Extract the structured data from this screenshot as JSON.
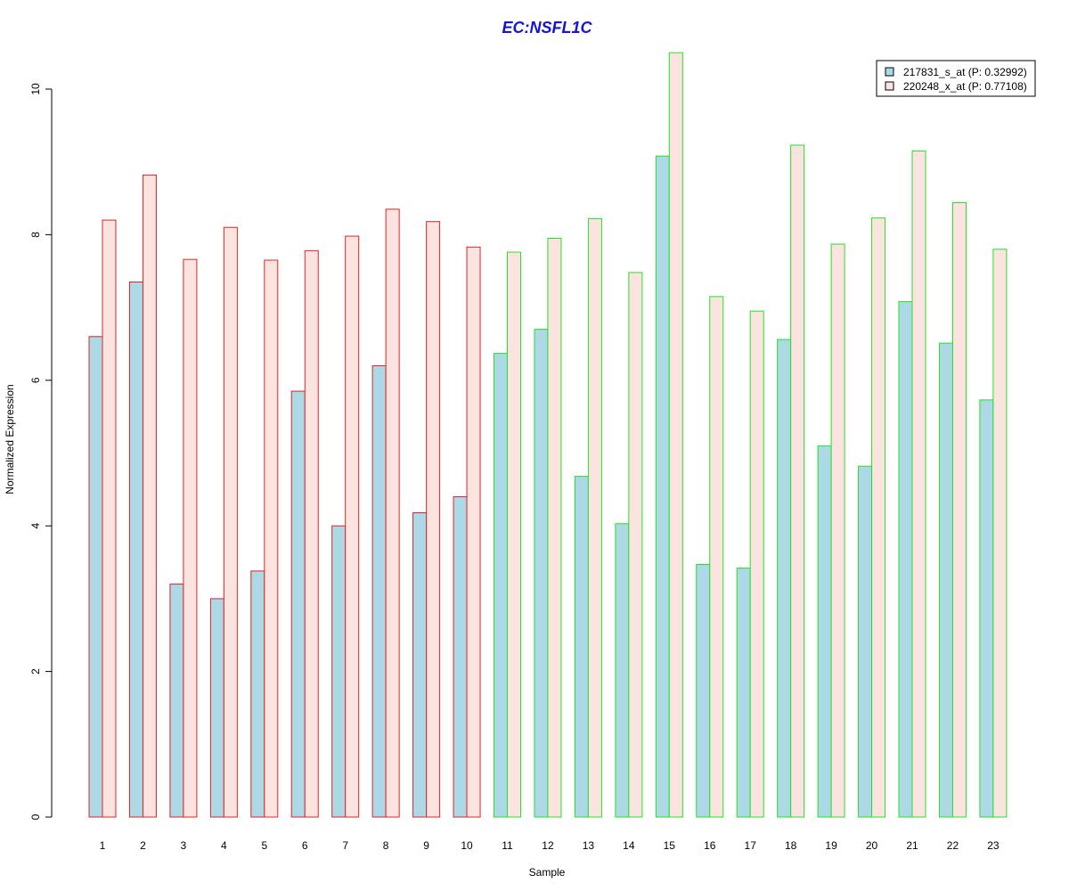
{
  "chart_data": {
    "type": "bar",
    "title": "EC:NSFL1C",
    "xlabel": "Sample",
    "ylabel": "Normalized Expression",
    "categories": [
      "1",
      "2",
      "3",
      "4",
      "5",
      "6",
      "7",
      "8",
      "9",
      "10",
      "11",
      "12",
      "13",
      "14",
      "15",
      "16",
      "17",
      "18",
      "19",
      "20",
      "21",
      "22",
      "23"
    ],
    "yticks": [
      "0",
      "2",
      "4",
      "6",
      "8",
      "10"
    ],
    "ylim": [
      0,
      10.5
    ],
    "legend_position": "top-right",
    "series": [
      {
        "name": "217831_s_at (P: 0.32992)",
        "fill": "#add8e6",
        "values": [
          6.6,
          7.35,
          3.2,
          3.0,
          3.38,
          5.85,
          4.0,
          6.2,
          4.18,
          4.4,
          6.37,
          6.7,
          4.68,
          4.03,
          9.08,
          3.47,
          3.42,
          6.56,
          5.1,
          4.82,
          7.08,
          6.51,
          5.73
        ]
      },
      {
        "name": "220248_x_at (P: 0.77108)",
        "fill": "#fbe4e0",
        "values": [
          8.2,
          8.82,
          7.66,
          8.1,
          7.65,
          7.78,
          7.98,
          8.35,
          8.18,
          7.83,
          7.76,
          7.95,
          8.22,
          7.48,
          10.5,
          7.15,
          6.95,
          9.23,
          7.87,
          8.23,
          9.15,
          8.44,
          7.8
        ]
      }
    ],
    "group_border_colors": [
      "#e32222",
      "#e32222",
      "#e32222",
      "#e32222",
      "#e32222",
      "#e32222",
      "#e32222",
      "#e32222",
      "#e32222",
      "#e32222",
      "#22e322",
      "#22e322",
      "#22e322",
      "#22e322",
      "#22e322",
      "#22e322",
      "#22e322",
      "#22e322",
      "#22e322",
      "#22e322",
      "#22e322",
      "#22e322",
      "#22e322"
    ],
    "title_color": "#1515d6"
  }
}
